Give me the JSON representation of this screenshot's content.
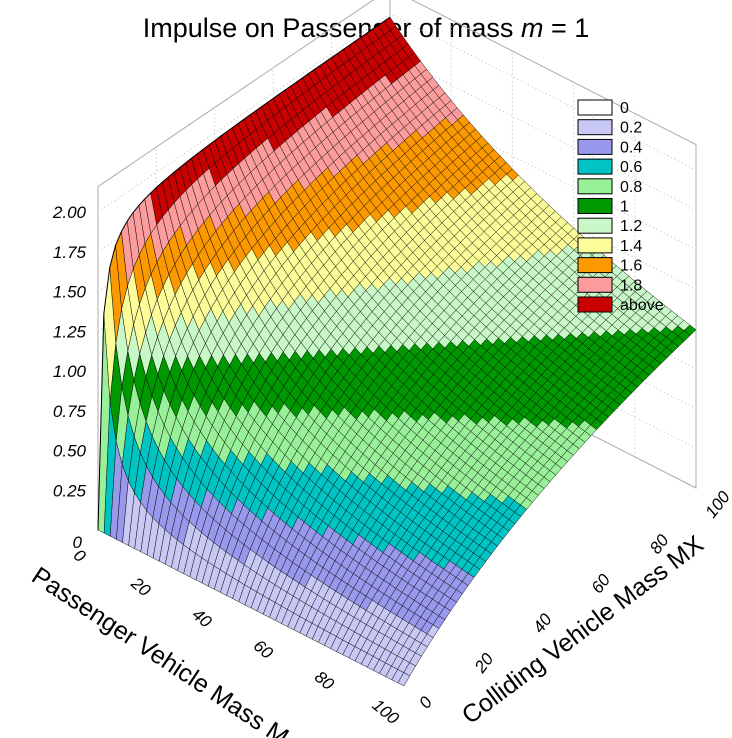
{
  "chart_data": {
    "type": "surface3d",
    "title_prefix": "Impulse on Passenger of mass ",
    "title_var": "m",
    "title_suffix": " = 1",
    "x_axis": {
      "label": "Passenger Vehicle Mass M",
      "ticks": [
        "0",
        "20",
        "40",
        "60",
        "80",
        "100"
      ],
      "range": [
        0,
        100
      ]
    },
    "y_axis": {
      "label": "Colliding Vehicle Mass MX",
      "ticks": [
        "0",
        "20",
        "40",
        "60",
        "80",
        "100"
      ],
      "range": [
        0,
        100
      ]
    },
    "z_axis": {
      "ticks": [
        "0.25",
        "0.50",
        "0.75",
        "1.00",
        "1.25",
        "1.50",
        "1.75",
        "2.00"
      ],
      "range": [
        0,
        2
      ]
    },
    "surface_formula": "2 * MX / (M + MX + 1)",
    "legend": [
      {
        "label": "0",
        "color": "#ffffff"
      },
      {
        "label": "0.2",
        "color": "#c8c8f4"
      },
      {
        "label": "0.4",
        "color": "#9898ec"
      },
      {
        "label": "0.6",
        "color": "#00c4c4"
      },
      {
        "label": "0.8",
        "color": "#98f098"
      },
      {
        "label": "1",
        "color": "#009800"
      },
      {
        "label": "1.2",
        "color": "#c8f8c8"
      },
      {
        "label": "1.4",
        "color": "#fcfc98"
      },
      {
        "label": "1.6",
        "color": "#fc9800"
      },
      {
        "label": "1.8",
        "color": "#fc9c9c"
      },
      {
        "label": "above",
        "color": "#c80000"
      }
    ],
    "grid": true
  }
}
